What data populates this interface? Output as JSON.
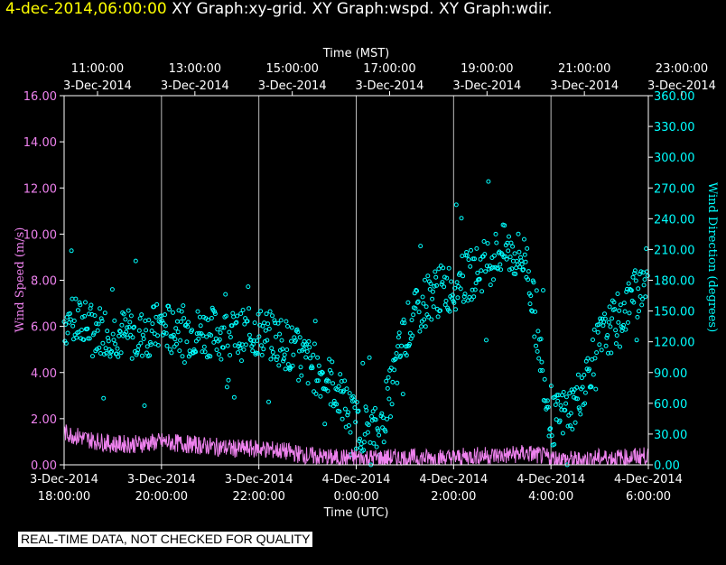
{
  "header": {
    "timestamp": "4-dec-2014,06:00:00",
    "graphs": [
      "XY Graph:xy-grid.",
      "XY Graph:wspd.",
      "XY Graph:wdir."
    ]
  },
  "notice": "REAL-TIME DATA, NOT CHECKED FOR QUALITY",
  "colors": {
    "background": "#000000",
    "frame": "#ffffff",
    "wind_speed": "#ee82ee",
    "wind_direction": "#00ffff",
    "header_time": "#ffff00"
  },
  "chart_data": {
    "type": "scatter",
    "top_axis": {
      "label": "Time (MST)",
      "ticks": [
        {
          "time": "11:00:00",
          "date": "3-Dec-2014"
        },
        {
          "time": "13:00:00",
          "date": "3-Dec-2014"
        },
        {
          "time": "15:00:00",
          "date": "3-Dec-2014"
        },
        {
          "time": "17:00:00",
          "date": "3-Dec-2014"
        },
        {
          "time": "19:00:00",
          "date": "3-Dec-2014"
        },
        {
          "time": "21:00:00",
          "date": "3-Dec-2014"
        },
        {
          "time": "23:00:00",
          "date": "3-Dec-2014"
        }
      ]
    },
    "bottom_axis": {
      "label": "Time (UTC)",
      "ticks": [
        {
          "date": "3-Dec-2014",
          "time": "18:00:00"
        },
        {
          "date": "3-Dec-2014",
          "time": "20:00:00"
        },
        {
          "date": "3-Dec-2014",
          "time": "22:00:00"
        },
        {
          "date": "4-Dec-2014",
          "time": "0:00:00"
        },
        {
          "date": "4-Dec-2014",
          "time": "2:00:00"
        },
        {
          "date": "4-Dec-2014",
          "time": "4:00:00"
        },
        {
          "date": "4-Dec-2014",
          "time": "6:00:00"
        }
      ]
    },
    "xlim_utc": [
      "2014-12-03 18:00",
      "2014-12-04 06:00"
    ],
    "grid": "vertical lines at every 2-hour tick",
    "left_axis": {
      "label": "Wind Speed (m/s)",
      "ylim": [
        0,
        16
      ],
      "ticks": [
        "0.00",
        "2.00",
        "4.00",
        "6.00",
        "8.00",
        "10.00",
        "12.00",
        "14.00",
        "16.00"
      ]
    },
    "right_axis": {
      "label": "Wind Direction (degrees)",
      "ylim": [
        0,
        360
      ],
      "ticks": [
        "0.00",
        "30.00",
        "60.00",
        "90.00",
        "120.00",
        "150.00",
        "180.00",
        "210.00",
        "240.00",
        "270.00",
        "300.00",
        "330.00",
        "360.00"
      ]
    },
    "series": [
      {
        "name": "Wind Speed (m/s)",
        "style": "line",
        "axis": "left",
        "x_utc_hours": [
          18.0,
          18.5,
          19.0,
          19.5,
          20.0,
          20.5,
          21.0,
          21.5,
          22.0,
          22.5,
          23.0,
          23.5,
          24.0,
          24.5,
          25.0,
          25.5,
          26.0,
          26.5,
          27.0,
          27.5,
          28.0,
          28.5,
          29.0,
          29.5,
          30.0
        ],
        "values": [
          1.4,
          1.1,
          0.9,
          0.9,
          1.0,
          0.9,
          0.8,
          0.7,
          0.7,
          0.6,
          0.4,
          0.3,
          0.3,
          0.3,
          0.3,
          0.3,
          0.3,
          0.4,
          0.4,
          0.5,
          0.3,
          0.2,
          0.3,
          0.3,
          0.4
        ]
      },
      {
        "name": "Wind Direction (degrees)",
        "style": "markers",
        "axis": "right",
        "x_utc_hours": [
          18.0,
          18.5,
          19.0,
          19.5,
          20.0,
          20.5,
          21.0,
          21.5,
          22.0,
          22.5,
          23.0,
          23.5,
          24.0,
          24.5,
          25.0,
          25.5,
          26.0,
          26.5,
          27.0,
          27.5,
          28.0,
          28.5,
          29.0,
          29.5,
          30.0
        ],
        "values": [
          140,
          135,
          130,
          125,
          135,
          130,
          130,
          125,
          130,
          120,
          100,
          80,
          40,
          30,
          130,
          165,
          175,
          190,
          210,
          200,
          40,
          60,
          120,
          150,
          190
        ]
      }
    ]
  }
}
